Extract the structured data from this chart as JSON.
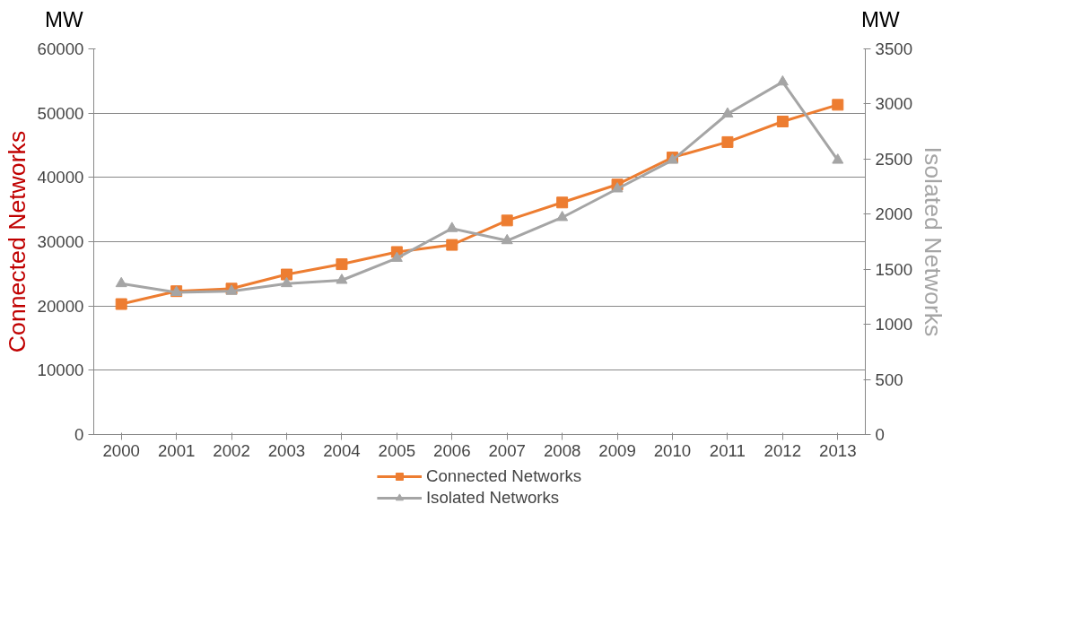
{
  "chart_data": {
    "type": "line",
    "ylabel": "Connected Networks",
    "y2label": "Isolated Networks",
    "categories": [
      "2000",
      "2001",
      "2002",
      "2003",
      "2004",
      "2005",
      "2006",
      "2007",
      "2008",
      "2009",
      "2010",
      "2011",
      "2012",
      "2013"
    ],
    "series": [
      {
        "name": "Connected Networks",
        "color": "#ed7d31",
        "marker": "square",
        "values": [
          20300,
          22300,
          22700,
          24900,
          26500,
          28400,
          29500,
          33300,
          36100,
          38900,
          43100,
          45500,
          48700,
          51300
        ]
      },
      {
        "name": "Isolated Networks",
        "color": "#a5a5a5",
        "marker": "triangle",
        "axis": "y2",
        "values": [
          1370,
          1290,
          1300,
          1370,
          1400,
          1600,
          1870,
          1760,
          1970,
          2230,
          2490,
          2910,
          3200,
          2490
        ]
      }
    ],
    "ylim": [
      0,
      60000
    ],
    "yticks": [
      0,
      10000,
      20000,
      30000,
      40000,
      50000,
      60000
    ],
    "y2lim": [
      0,
      3500
    ],
    "y2ticks": [
      0,
      500,
      1000,
      1500,
      2000,
      2500,
      3000,
      3500
    ],
    "grid": "y",
    "legend": "bottom",
    "annotations": [
      "MW",
      "MW"
    ]
  }
}
